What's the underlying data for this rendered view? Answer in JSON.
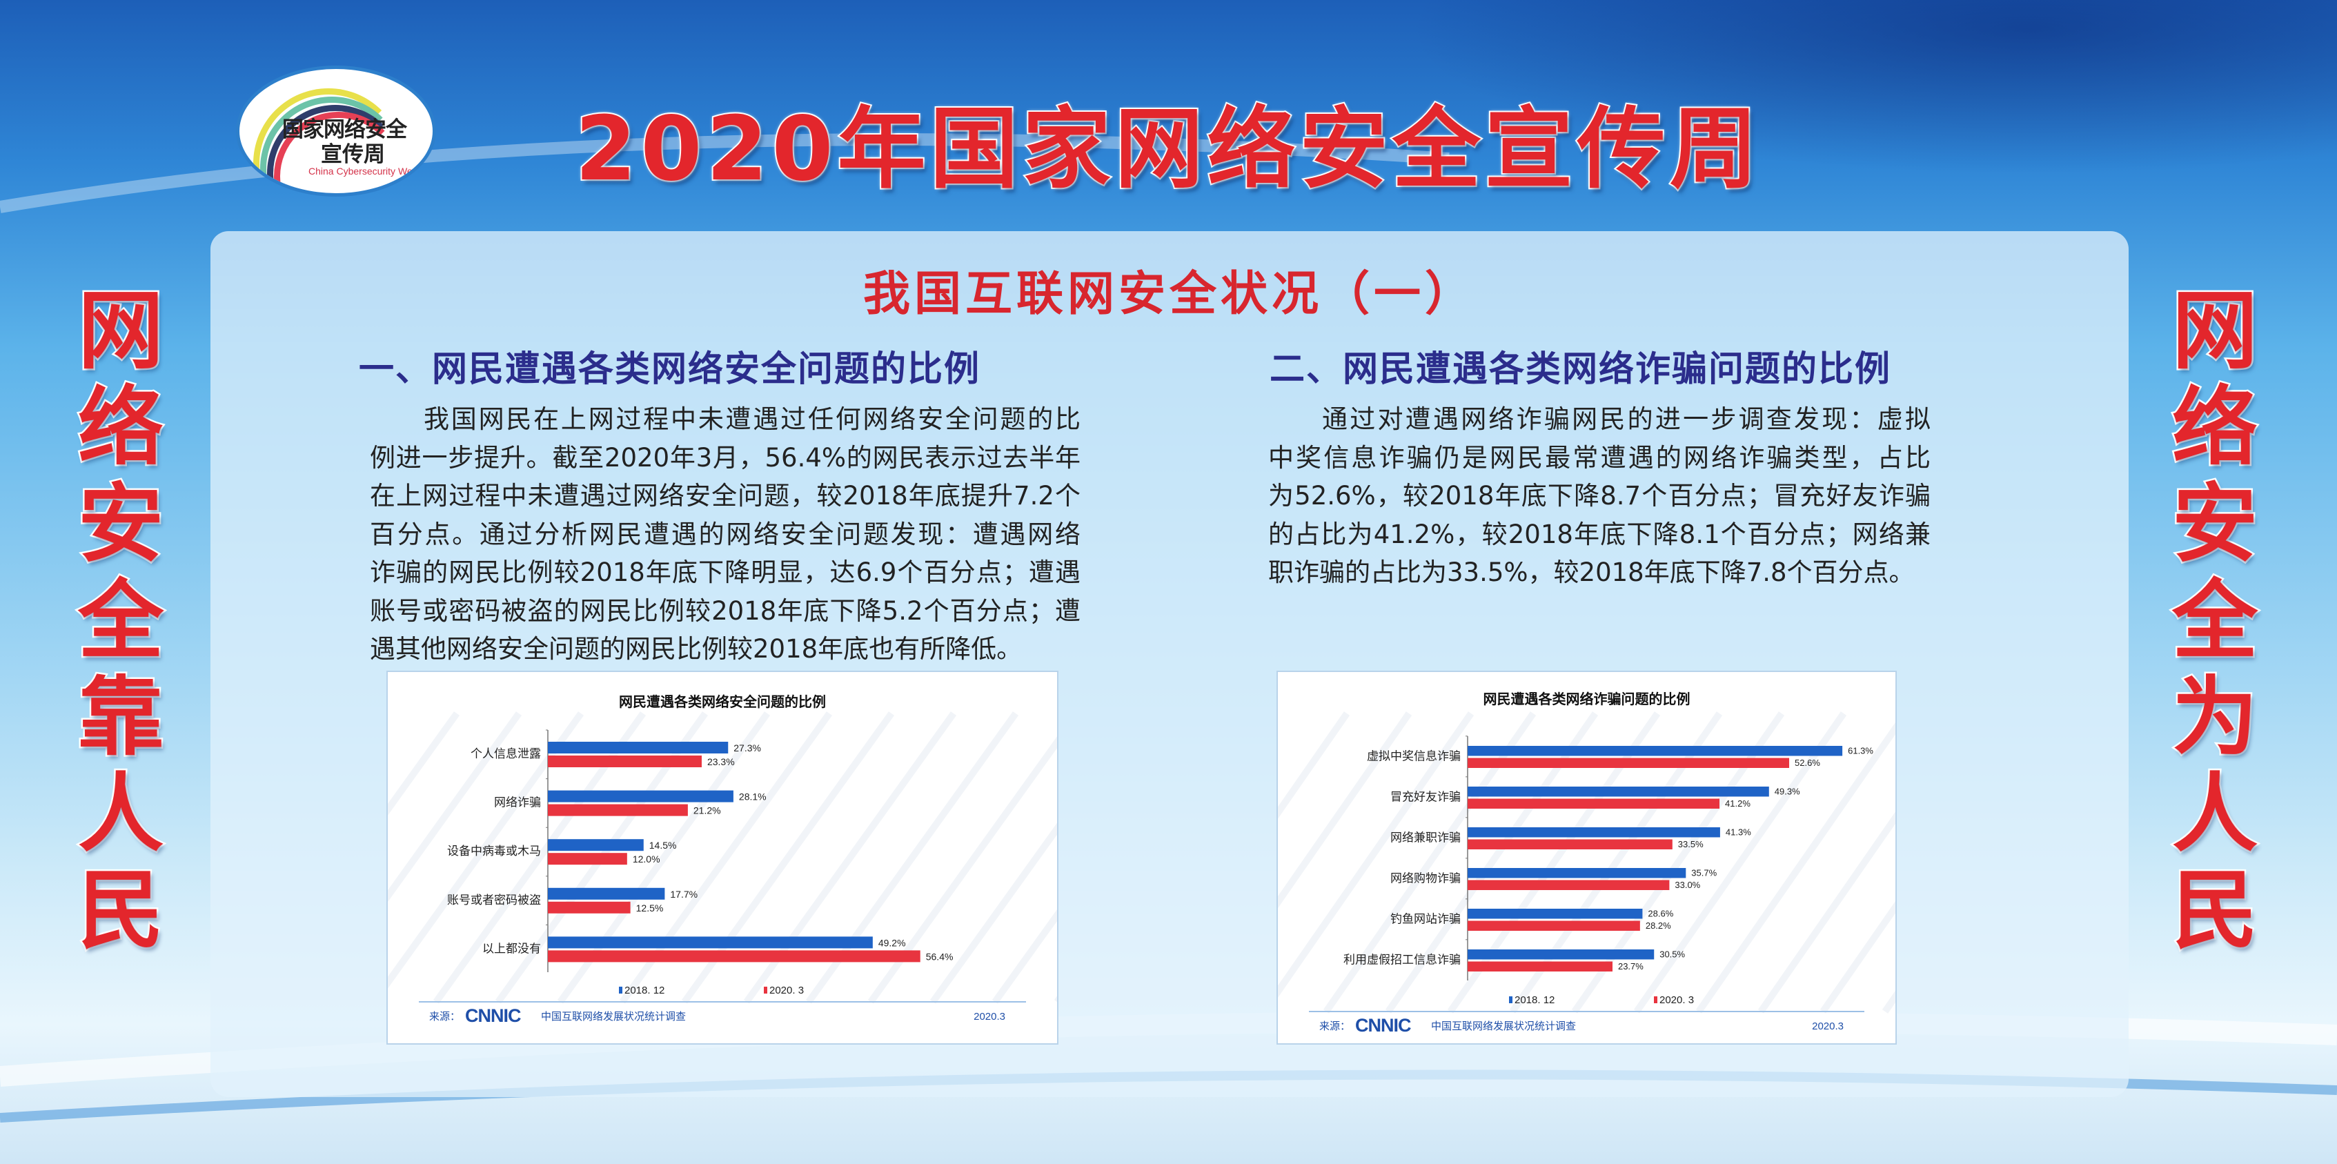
{
  "logo": {
    "line1": "国家网络安全",
    "line2": "宣传周",
    "english": "China Cybersecurity Week"
  },
  "main_title": "2020年国家网络安全宣传周",
  "slogans": {
    "left": [
      "网",
      "络",
      "安",
      "全",
      "靠",
      "人",
      "民"
    ],
    "right": [
      "网",
      "络",
      "安",
      "全",
      "为",
      "人",
      "民"
    ]
  },
  "subtitle": "我国互联网安全状况（一）",
  "sections": [
    {
      "heading": "一、网民遭遇各类网络安全问题的比例",
      "lines": [
        "我国网民在上网过程中未遭遇过任何网络安全问题的比",
        "例进一步提升。截至2020年3月，56.4%的网民表示过去半年",
        "在上网过程中未遭遇过网络安全问题，较2018年底提升7.2个",
        "百分点。通过分析网民遭遇的网络安全问题发现：遭遇网络",
        "诈骗的网民比例较2018年底下降明显，达6.9个百分点；遭遇",
        "账号或密码被盗的网民比例较2018年底下降5.2个百分点；遭",
        "遇其他网络安全问题的网民比例较2018年底也有所降低。"
      ]
    },
    {
      "heading": "二、网民遭遇各类网络诈骗问题的比例",
      "lines": [
        "通过对遭遇网络诈骗网民的进一步调查发现：虚拟",
        "中奖信息诈骗仍是网民最常遭遇的网络诈骗类型，占比",
        "为52.6%，较2018年底下降8.7个百分点；冒充好友诈骗",
        "的占比为41.2%，较2018年底下降8.1个百分点；网络兼",
        "职诈骗的占比为33.5%，较2018年底下降7.8个百分点。"
      ]
    }
  ],
  "colors": {
    "series_2018": "#1f63c6",
    "series_2020": "#e8343f",
    "title_red": "#e3262c",
    "heading_navy": "#2b2d8c",
    "source_blue": "#1f4fa8"
  },
  "chart_data": [
    {
      "type": "bar",
      "orientation": "horizontal",
      "title": "网民遭遇各类网络安全问题的比例",
      "categories": [
        "个人信息泄露",
        "网络诈骗",
        "设备中病毒或木马",
        "账号或者密码被盗",
        "以上都没有"
      ],
      "series": [
        {
          "name": "2018. 12",
          "values": [
            27.3,
            28.1,
            14.5,
            17.7,
            49.2
          ],
          "labels": [
            "27.3%",
            "28.1%",
            "14.5%",
            "17.7%",
            "49.2%"
          ]
        },
        {
          "name": "2020. 3",
          "values": [
            23.3,
            21.2,
            12.0,
            12.5,
            56.4
          ],
          "labels": [
            "23.3%",
            "21.2%",
            "12.0%",
            "12.5%",
            "56.4%"
          ]
        }
      ],
      "unit": "%",
      "legend": "bottom",
      "grid": false,
      "source_label": "来源：",
      "source_logo": "CNNIC",
      "source_text": "中国互联网络发展状况统计调查",
      "source_date": "2020.3",
      "watermark": "CNNIC"
    },
    {
      "type": "bar",
      "orientation": "horizontal",
      "title": "网民遭遇各类网络诈骗问题的比例",
      "categories": [
        "虚拟中奖信息诈骗",
        "冒充好友诈骗",
        "网络兼职诈骗",
        "网络购物诈骗",
        "钓鱼网站诈骗",
        "利用虚假招工信息诈骗"
      ],
      "series": [
        {
          "name": "2018. 12",
          "values": [
            61.3,
            49.3,
            41.3,
            35.7,
            28.6,
            30.5
          ],
          "labels": [
            "61.3%",
            "49.3%",
            "41.3%",
            "35.7%",
            "28.6%",
            "30.5%"
          ]
        },
        {
          "name": "2020. 3",
          "values": [
            52.6,
            41.2,
            33.5,
            33.0,
            28.2,
            23.7
          ],
          "labels": [
            "52.6%",
            "41.2%",
            "33.5%",
            "33.0%",
            "28.2%",
            "23.7%"
          ]
        }
      ],
      "unit": "%",
      "legend": "bottom",
      "grid": false,
      "source_label": "来源：",
      "source_logo": "CNNIC",
      "source_text": "中国互联网络发展状况统计调查",
      "source_date": "2020.3",
      "watermark": "CNNIC"
    }
  ]
}
